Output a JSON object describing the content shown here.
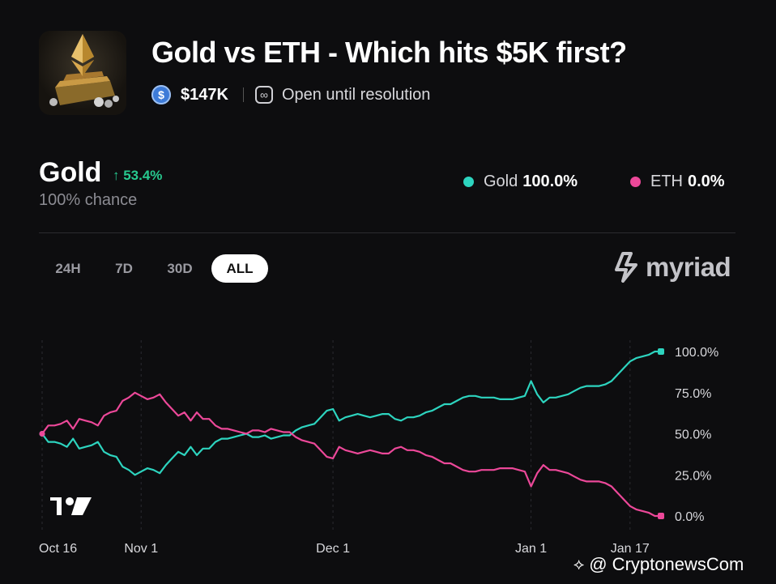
{
  "header": {
    "title": "Gold vs ETH - Which hits $5K first?",
    "volume": "$147K",
    "status": "Open until resolution",
    "coin_icon_glyph": "$",
    "loop_icon_glyph": "∞"
  },
  "outcome": {
    "name": "Gold",
    "change": "↑ 53.4%",
    "chance": "100% chance"
  },
  "legend": [
    {
      "name": "Gold",
      "value": "100.0%",
      "color": "#2dd4bf"
    },
    {
      "name": "ETH",
      "value": "0.0%",
      "color": "#ec4899"
    }
  ],
  "tabs": [
    "24H",
    "7D",
    "30D",
    "ALL"
  ],
  "active_tab": "ALL",
  "brand": {
    "name": "myriad"
  },
  "watermark": {
    "icon": "⟡",
    "text": "@ CryptonewsCom"
  },
  "chart_data": {
    "type": "line",
    "x_ticks": [
      "Oct 16",
      "Nov 1",
      "Dec 1",
      "Jan 1",
      "Jan 17"
    ],
    "x_tick_index": [
      0,
      16,
      47,
      79,
      95
    ],
    "y_ticks": [
      "100.0%",
      "75.0%",
      "50.0%",
      "25.0%",
      "0.0%"
    ],
    "ylim": [
      0,
      100
    ],
    "n_points": 101,
    "series": [
      {
        "name": "Gold",
        "color": "#2dd4bf",
        "values": [
          50,
          45,
          45,
          44,
          42,
          47,
          41,
          42,
          43,
          45,
          39,
          37,
          36,
          30,
          28,
          25,
          27,
          29,
          28,
          26,
          31,
          35,
          39,
          37,
          42,
          37,
          41,
          41,
          45,
          47,
          47,
          48,
          49,
          50,
          48,
          48,
          49,
          47,
          48,
          49,
          49,
          52,
          54,
          55,
          56,
          60,
          64,
          65,
          58,
          60,
          61,
          62,
          61,
          60,
          61,
          62,
          62,
          59,
          58,
          60,
          60,
          61,
          63,
          64,
          66,
          68,
          68,
          70,
          72,
          73,
          73,
          72,
          72,
          72,
          71,
          71,
          71,
          72,
          73,
          82,
          74,
          69,
          72,
          72,
          73,
          74,
          76,
          78,
          79,
          79,
          79,
          80,
          82,
          86,
          90,
          94,
          96,
          97,
          98,
          100,
          100
        ]
      },
      {
        "name": "ETH",
        "color": "#ec4899",
        "values": [
          50,
          55,
          55,
          56,
          58,
          53,
          59,
          58,
          57,
          55,
          61,
          63,
          64,
          70,
          72,
          75,
          73,
          71,
          72,
          74,
          69,
          65,
          61,
          63,
          58,
          63,
          59,
          59,
          55,
          53,
          53,
          52,
          51,
          50,
          52,
          52,
          51,
          53,
          52,
          51,
          51,
          48,
          46,
          45,
          44,
          40,
          36,
          35,
          42,
          40,
          39,
          38,
          39,
          40,
          39,
          38,
          38,
          41,
          42,
          40,
          40,
          39,
          37,
          36,
          34,
          32,
          32,
          30,
          28,
          27,
          27,
          28,
          28,
          28,
          29,
          29,
          29,
          28,
          27,
          18,
          26,
          31,
          28,
          28,
          27,
          26,
          24,
          22,
          21,
          21,
          21,
          20,
          18,
          14,
          10,
          6,
          4,
          3,
          2,
          0,
          0
        ]
      }
    ]
  }
}
